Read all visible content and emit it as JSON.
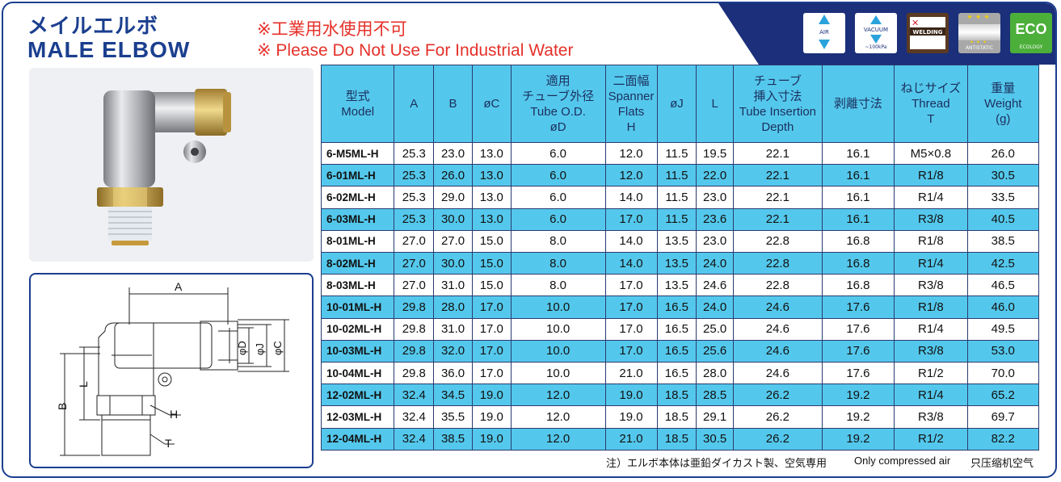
{
  "header": {
    "title_jp": "メイルエルボ",
    "title_en": "MALE  ELBOW",
    "warning_jp": "※工業用水使用不可",
    "warning_en": "※ Please Do Not Use For Industrial Water"
  },
  "icons": [
    {
      "name": "air-icon",
      "label": "AIR"
    },
    {
      "name": "vacuum-icon",
      "label": "VACUUM",
      "sub": "~100kPa"
    },
    {
      "name": "welding-icon",
      "label": "WELDING"
    },
    {
      "name": "antistatic-icon",
      "label": "ANTISTATIC"
    },
    {
      "name": "ecology-icon",
      "label": "ECO",
      "sub": "ECOLOGY"
    }
  ],
  "drawing": {
    "labels": {
      "a": "A",
      "b": "B",
      "l": "L",
      "h": "H",
      "t": "T",
      "od": "φD",
      "oj": "φJ",
      "oc": "φC"
    }
  },
  "table": {
    "headers": [
      {
        "lines": [
          "型式",
          "Model"
        ]
      },
      {
        "lines": [
          "A"
        ]
      },
      {
        "lines": [
          "B"
        ]
      },
      {
        "lines": [
          "øC"
        ]
      },
      {
        "lines": [
          "適用",
          "チューブ外径",
          "Tube O.D.",
          "øD"
        ]
      },
      {
        "lines": [
          "二面幅",
          "Spanner",
          "Flats",
          "H"
        ]
      },
      {
        "lines": [
          "øJ"
        ]
      },
      {
        "lines": [
          "L"
        ]
      },
      {
        "lines": [
          "チューブ",
          "挿入寸法",
          "Tube Insertion",
          "Depth"
        ]
      },
      {
        "lines": [
          "剥離寸法"
        ]
      },
      {
        "lines": [
          "ねじサイズ",
          "Thread",
          "T"
        ]
      },
      {
        "lines": [
          "重量",
          "Weight",
          "(g)"
        ]
      }
    ],
    "rows": [
      [
        "6-M5ML-H",
        "25.3",
        "23.0",
        "13.0",
        "6.0",
        "12.0",
        "11.5",
        "19.5",
        "22.1",
        "16.1",
        "M5×0.8",
        "26.0"
      ],
      [
        "6-01ML-H",
        "25.3",
        "26.0",
        "13.0",
        "6.0",
        "12.0",
        "11.5",
        "22.0",
        "22.1",
        "16.1",
        "R1/8",
        "30.5"
      ],
      [
        "6-02ML-H",
        "25.3",
        "29.0",
        "13.0",
        "6.0",
        "14.0",
        "11.5",
        "23.0",
        "22.1",
        "16.1",
        "R1/4",
        "33.5"
      ],
      [
        "6-03ML-H",
        "25.3",
        "30.0",
        "13.0",
        "6.0",
        "17.0",
        "11.5",
        "23.6",
        "22.1",
        "16.1",
        "R3/8",
        "40.5"
      ],
      [
        "8-01ML-H",
        "27.0",
        "27.0",
        "15.0",
        "8.0",
        "14.0",
        "13.5",
        "23.0",
        "22.8",
        "16.8",
        "R1/8",
        "38.5"
      ],
      [
        "8-02ML-H",
        "27.0",
        "30.0",
        "15.0",
        "8.0",
        "14.0",
        "13.5",
        "24.0",
        "22.8",
        "16.8",
        "R1/4",
        "42.5"
      ],
      [
        "8-03ML-H",
        "27.0",
        "31.0",
        "15.0",
        "8.0",
        "17.0",
        "13.5",
        "24.6",
        "22.8",
        "16.8",
        "R3/8",
        "46.5"
      ],
      [
        "10-01ML-H",
        "29.8",
        "28.0",
        "17.0",
        "10.0",
        "17.0",
        "16.5",
        "24.0",
        "24.6",
        "17.6",
        "R1/8",
        "46.0"
      ],
      [
        "10-02ML-H",
        "29.8",
        "31.0",
        "17.0",
        "10.0",
        "17.0",
        "16.5",
        "25.0",
        "24.6",
        "17.6",
        "R1/4",
        "49.5"
      ],
      [
        "10-03ML-H",
        "29.8",
        "32.0",
        "17.0",
        "10.0",
        "17.0",
        "16.5",
        "25.6",
        "24.6",
        "17.6",
        "R3/8",
        "53.0"
      ],
      [
        "10-04ML-H",
        "29.8",
        "36.0",
        "17.0",
        "10.0",
        "21.0",
        "16.5",
        "28.0",
        "24.6",
        "17.6",
        "R1/2",
        "70.0"
      ],
      [
        "12-02ML-H",
        "32.4",
        "34.5",
        "19.0",
        "12.0",
        "19.0",
        "18.5",
        "28.5",
        "26.2",
        "19.2",
        "R1/4",
        "65.2"
      ],
      [
        "12-03ML-H",
        "32.4",
        "35.5",
        "19.0",
        "12.0",
        "19.0",
        "18.5",
        "29.1",
        "26.2",
        "19.2",
        "R3/8",
        "69.7"
      ],
      [
        "12-04ML-H",
        "32.4",
        "38.5",
        "19.0",
        "12.0",
        "21.0",
        "18.5",
        "30.5",
        "26.2",
        "19.2",
        "R1/2",
        "82.2"
      ]
    ]
  },
  "footnotes": {
    "jp": "注）エルボ本体は亜鉛ダイカスト製、空気専用",
    "en": "Only compressed air",
    "cn": "只压缩机空气"
  }
}
